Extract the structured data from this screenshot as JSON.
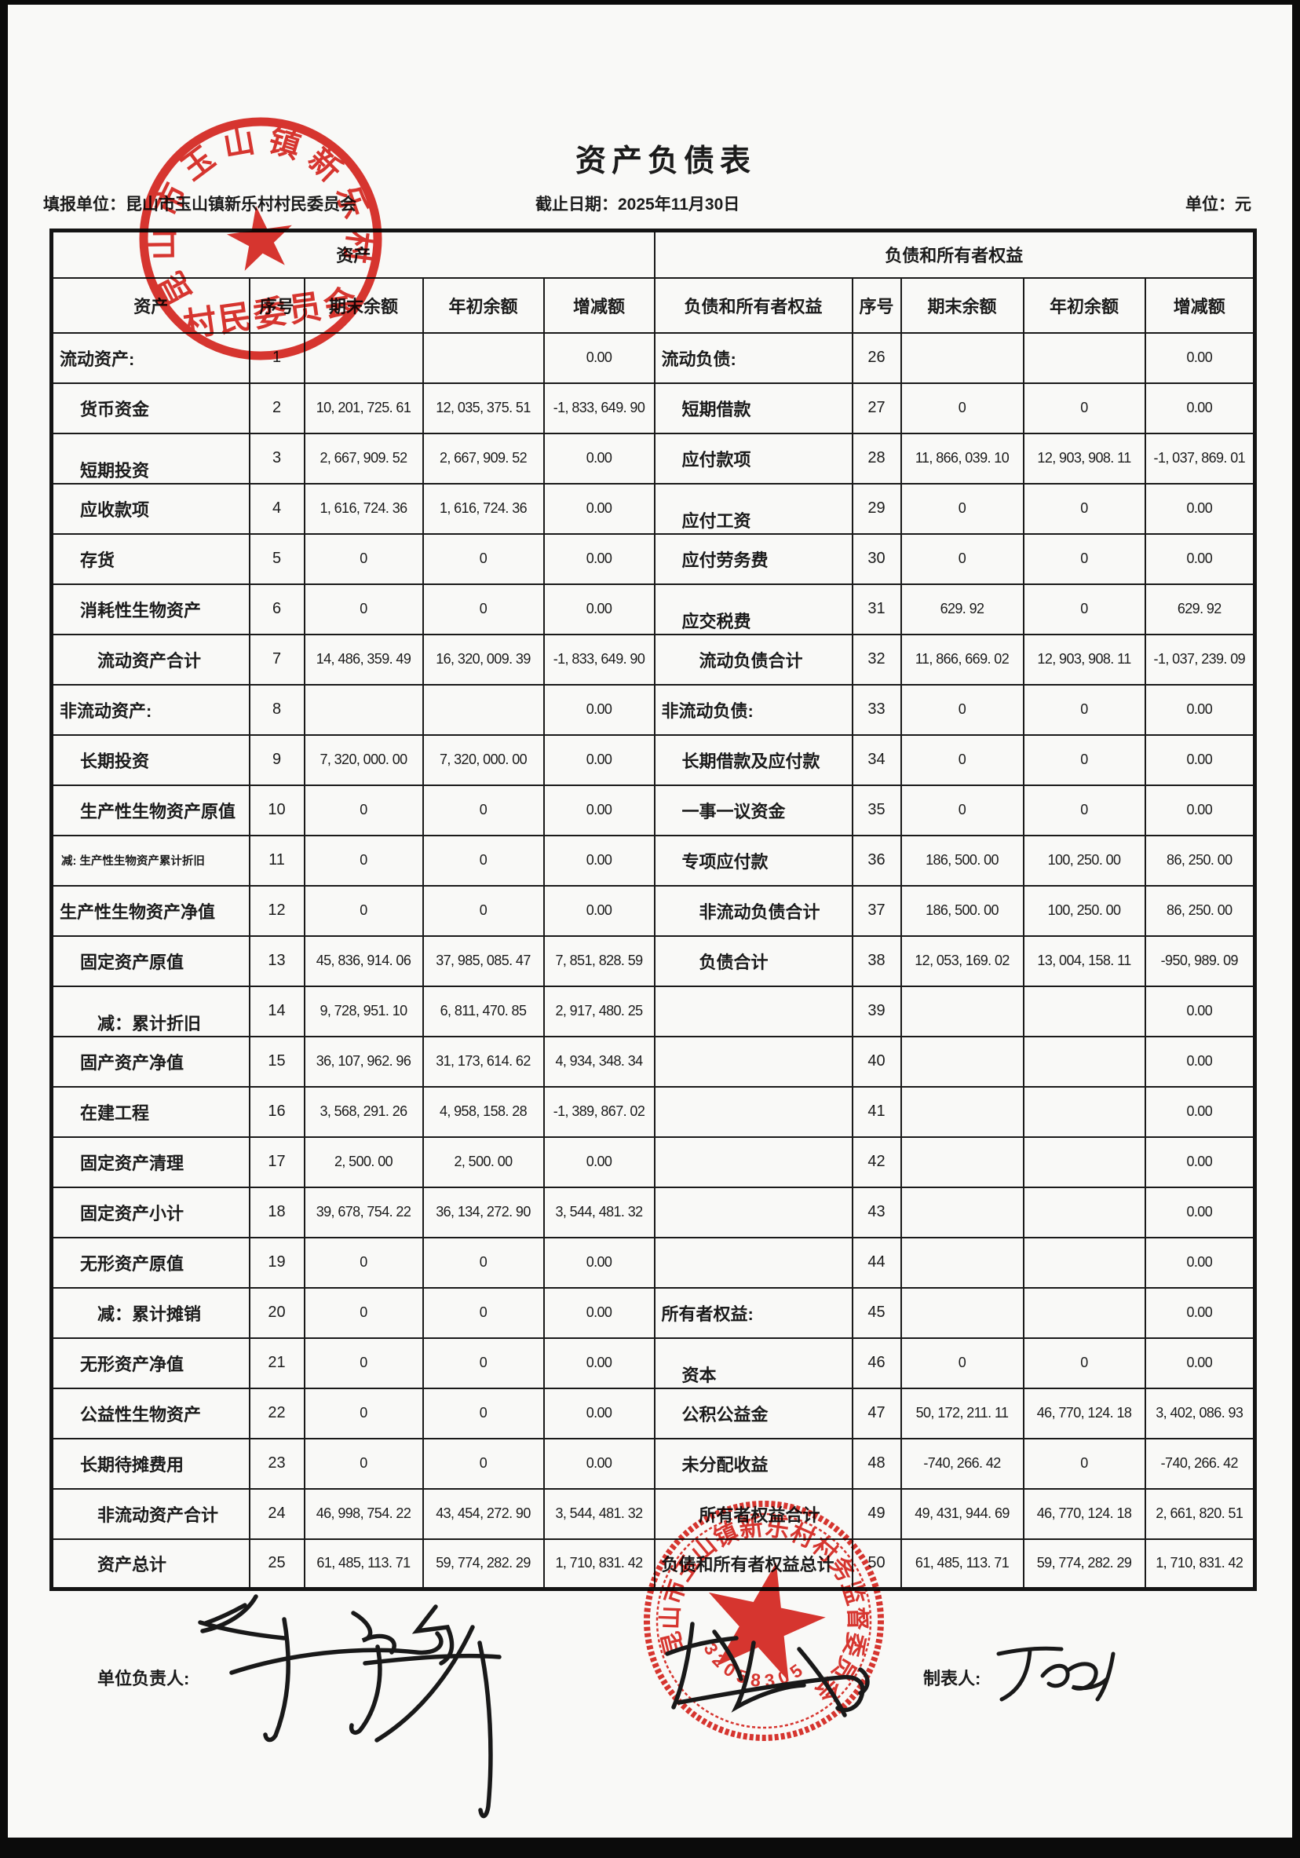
{
  "page": {
    "title": "资产负债表",
    "unit_label": "填报单位：昆山市玉山镇新乐村村民委员会",
    "date_label": "截止日期：2025年11月30日",
    "currency_label": "单位：元"
  },
  "table": {
    "section_headers": {
      "assets": "资产",
      "liabilities": "负债和所有者权益"
    },
    "col_headers": [
      "资产",
      "序号",
      "期末余额",
      "年初余额",
      "增减额",
      "负债和所有者权益",
      "序号",
      "期末余额",
      "年初余额",
      "增减额"
    ],
    "rows": [
      {
        "left": {
          "label": "流动资产:",
          "indent": 0,
          "seq": "1",
          "end": "",
          "begin": "",
          "chg": "0.00"
        },
        "right": {
          "label": "流动负债:",
          "indent": 0,
          "seq": "26",
          "end": "",
          "begin": "",
          "chg": "0.00"
        }
      },
      {
        "left": {
          "label": "货币资金",
          "indent": 1,
          "seq": "2",
          "end": "10, 201, 725. 61",
          "begin": "12, 035, 375. 51",
          "chg": "-1, 833, 649. 90"
        },
        "right": {
          "label": "短期借款",
          "indent": 1,
          "seq": "27",
          "end": "0",
          "begin": "0",
          "chg": "0.00"
        }
      },
      {
        "left": {
          "label": "短期投资",
          "indent": 1,
          "va": "bottom",
          "seq": "3",
          "end": "2, 667, 909. 52",
          "begin": "2, 667, 909. 52",
          "chg": "0.00"
        },
        "right": {
          "label": "应付款项",
          "indent": 1,
          "seq": "28",
          "end": "11, 866, 039. 10",
          "begin": "12, 903, 908. 11",
          "chg": "-1, 037, 869. 01"
        }
      },
      {
        "left": {
          "label": "应收款项",
          "indent": 1,
          "seq": "4",
          "end": "1, 616, 724. 36",
          "begin": "1, 616, 724. 36",
          "chg": "0.00"
        },
        "right": {
          "label": "应付工资",
          "indent": 1,
          "va": "bottom",
          "seq": "29",
          "end": "0",
          "begin": "0",
          "chg": "0.00"
        }
      },
      {
        "left": {
          "label": "存货",
          "indent": 1,
          "seq": "5",
          "end": "0",
          "begin": "0",
          "chg": "0.00"
        },
        "right": {
          "label": "应付劳务费",
          "indent": 1,
          "seq": "30",
          "end": "0",
          "begin": "0",
          "chg": "0.00"
        }
      },
      {
        "left": {
          "label": "消耗性生物资产",
          "indent": 1,
          "seq": "6",
          "end": "0",
          "begin": "0",
          "chg": "0.00"
        },
        "right": {
          "label": "应交税费",
          "indent": 1,
          "va": "bottom",
          "seq": "31",
          "end": "629. 92",
          "begin": "0",
          "chg": "629. 92"
        }
      },
      {
        "left": {
          "label": "流动资产合计",
          "indent": 2,
          "seq": "7",
          "end": "14, 486, 359. 49",
          "begin": "16, 320, 009. 39",
          "chg": "-1, 833, 649. 90"
        },
        "right": {
          "label": "流动负债合计",
          "indent": 2,
          "seq": "32",
          "end": "11, 866, 669. 02",
          "begin": "12, 903, 908. 11",
          "chg": "-1, 037, 239. 09"
        }
      },
      {
        "left": {
          "label": "非流动资产:",
          "indent": 0,
          "seq": "8",
          "end": "",
          "begin": "",
          "chg": "0.00"
        },
        "right": {
          "label": "非流动负债:",
          "indent": 0,
          "seq": "33",
          "end": "0",
          "begin": "0",
          "chg": "0.00"
        }
      },
      {
        "left": {
          "label": "长期投资",
          "indent": 1,
          "seq": "9",
          "end": "7, 320, 000. 00",
          "begin": "7, 320, 000. 00",
          "chg": "0.00"
        },
        "right": {
          "label": "长期借款及应付款",
          "indent": 1,
          "seq": "34",
          "end": "0",
          "begin": "0",
          "chg": "0.00"
        }
      },
      {
        "left": {
          "label": "生产性生物资产原值",
          "indent": 1,
          "seq": "10",
          "end": "0",
          "begin": "0",
          "chg": "0.00"
        },
        "right": {
          "label": "一事一议资金",
          "indent": 1,
          "seq": "35",
          "end": "0",
          "begin": "0",
          "chg": "0.00"
        }
      },
      {
        "left": {
          "label": "减: 生产性生物资产累计折旧",
          "indent": 0,
          "small": true,
          "seq": "11",
          "end": "0",
          "begin": "0",
          "chg": "0.00"
        },
        "right": {
          "label": "专项应付款",
          "indent": 1,
          "seq": "36",
          "end": "186, 500. 00",
          "begin": "100, 250. 00",
          "chg": "86, 250. 00"
        }
      },
      {
        "left": {
          "label": "生产性生物资产净值",
          "indent": 0,
          "seq": "12",
          "end": "0",
          "begin": "0",
          "chg": "0.00"
        },
        "right": {
          "label": "非流动负债合计",
          "indent": 2,
          "seq": "37",
          "end": "186, 500. 00",
          "begin": "100, 250. 00",
          "chg": "86, 250. 00"
        }
      },
      {
        "left": {
          "label": "固定资产原值",
          "indent": 1,
          "seq": "13",
          "end": "45, 836, 914. 06",
          "begin": "37, 985, 085. 47",
          "chg": "7, 851, 828. 59"
        },
        "right": {
          "label": "负债合计",
          "indent": 2,
          "seq": "38",
          "end": "12, 053, 169. 02",
          "begin": "13, 004, 158. 11",
          "chg": "-950, 989. 09"
        }
      },
      {
        "left": {
          "label": "减：累计折旧",
          "indent": 2,
          "va": "bottom",
          "seq": "14",
          "end": "9, 728, 951. 10",
          "begin": "6, 811, 470. 85",
          "chg": "2, 917, 480. 25"
        },
        "right": {
          "label": "",
          "indent": 0,
          "seq": "39",
          "end": "",
          "begin": "",
          "chg": "0.00"
        }
      },
      {
        "left": {
          "label": "固产资产净值",
          "indent": 1,
          "seq": "15",
          "end": "36, 107, 962. 96",
          "begin": "31, 173, 614. 62",
          "chg": "4, 934, 348. 34"
        },
        "right": {
          "label": "",
          "indent": 0,
          "seq": "40",
          "end": "",
          "begin": "",
          "chg": "0.00"
        }
      },
      {
        "left": {
          "label": "在建工程",
          "indent": 1,
          "seq": "16",
          "end": "3, 568, 291. 26",
          "begin": "4, 958, 158. 28",
          "chg": "-1, 389, 867. 02"
        },
        "right": {
          "label": "",
          "indent": 0,
          "seq": "41",
          "end": "",
          "begin": "",
          "chg": "0.00"
        }
      },
      {
        "left": {
          "label": "固定资产清理",
          "indent": 1,
          "seq": "17",
          "end": "2, 500. 00",
          "begin": "2, 500. 00",
          "chg": "0.00"
        },
        "right": {
          "label": "",
          "indent": 0,
          "seq": "42",
          "end": "",
          "begin": "",
          "chg": "0.00"
        }
      },
      {
        "left": {
          "label": "固定资产小计",
          "indent": 1,
          "seq": "18",
          "end": "39, 678, 754. 22",
          "begin": "36, 134, 272. 90",
          "chg": "3, 544, 481. 32"
        },
        "right": {
          "label": "",
          "indent": 0,
          "seq": "43",
          "end": "",
          "begin": "",
          "chg": "0.00"
        }
      },
      {
        "left": {
          "label": "无形资产原值",
          "indent": 1,
          "seq": "19",
          "end": "0",
          "begin": "0",
          "chg": "0.00"
        },
        "right": {
          "label": "",
          "indent": 0,
          "seq": "44",
          "end": "",
          "begin": "",
          "chg": "0.00"
        }
      },
      {
        "left": {
          "label": "减：累计摊销",
          "indent": 2,
          "seq": "20",
          "end": "0",
          "begin": "0",
          "chg": "0.00"
        },
        "right": {
          "label": "所有者权益:",
          "indent": 0,
          "seq": "45",
          "end": "",
          "begin": "",
          "chg": "0.00"
        }
      },
      {
        "left": {
          "label": "无形资产净值",
          "indent": 1,
          "seq": "21",
          "end": "0",
          "begin": "0",
          "chg": "0.00"
        },
        "right": {
          "label": "资本",
          "indent": 1,
          "va": "bottom",
          "seq": "46",
          "end": "0",
          "begin": "0",
          "chg": "0.00"
        }
      },
      {
        "left": {
          "label": "公益性生物资产",
          "indent": 1,
          "seq": "22",
          "end": "0",
          "begin": "0",
          "chg": "0.00"
        },
        "right": {
          "label": "公积公益金",
          "indent": 1,
          "seq": "47",
          "end": "50, 172, 211. 11",
          "begin": "46, 770, 124. 18",
          "chg": "3, 402, 086. 93"
        }
      },
      {
        "left": {
          "label": "长期待摊费用",
          "indent": 1,
          "seq": "23",
          "end": "0",
          "begin": "0",
          "chg": "0.00"
        },
        "right": {
          "label": "未分配收益",
          "indent": 1,
          "seq": "48",
          "end": "-740, 266. 42",
          "begin": "0",
          "chg": "-740, 266. 42"
        }
      },
      {
        "left": {
          "label": "非流动资产合计",
          "indent": 2,
          "seq": "24",
          "end": "46, 998, 754. 22",
          "begin": "43, 454, 272. 90",
          "chg": "3, 544, 481. 32"
        },
        "right": {
          "label": "所有者权益合计",
          "indent": 2,
          "seq": "49",
          "end": "49, 431, 944. 69",
          "begin": "46, 770, 124. 18",
          "chg": "2, 661, 820. 51"
        }
      },
      {
        "left": {
          "label": "资产总计",
          "indent": 2,
          "seq": "25",
          "end": "61, 485, 113. 71",
          "begin": "59, 774, 282. 29",
          "chg": "1, 710, 831. 42"
        },
        "right": {
          "label": "负债和所有者权益总计",
          "indent": 0,
          "seq": "50",
          "end": "61, 485, 113. 71",
          "begin": "59, 774, 282. 29",
          "chg": "1, 710, 831. 42"
        }
      }
    ]
  },
  "footer": {
    "responsible_label": "单位负责人:",
    "preparer_label": "制表人:"
  },
  "stamps": {
    "ink_color": "#d9251e",
    "village": {
      "arc_text": "昆山市玉山镇新乐村",
      "center_text": "村民委员会"
    },
    "supervision": {
      "arc_text": "昆山市玉山镇新乐村村务监督委员会",
      "code_text": "32058305"
    }
  }
}
